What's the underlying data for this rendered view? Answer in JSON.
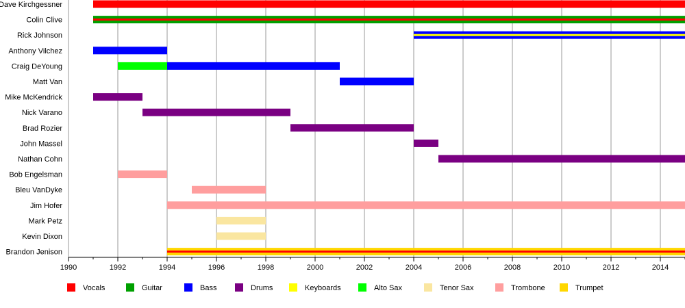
{
  "chart_data": {
    "type": "timeline",
    "title": "",
    "xlabel": "",
    "ylabel": "",
    "xlim": [
      1990,
      2015
    ],
    "grid": true,
    "legend_position": "bottom",
    "x_ticks": [
      "1990",
      "1992",
      "1994",
      "1996",
      "1998",
      "2000",
      "2002",
      "2004",
      "2006",
      "2008",
      "2010",
      "2012",
      "2014"
    ],
    "roles": [
      {
        "name": "Vocals",
        "color": "#ff0000"
      },
      {
        "name": "Guitar",
        "color": "#00a000"
      },
      {
        "name": "Bass",
        "color": "#0000ff"
      },
      {
        "name": "Drums",
        "color": "#7a0082"
      },
      {
        "name": "Keyboards",
        "color": "#ffff00"
      },
      {
        "name": "Alto Sax",
        "color": "#00ff00"
      },
      {
        "name": "Tenor Sax",
        "color": "#fae6a0"
      },
      {
        "name": "Trombone",
        "color": "#ff9e9e"
      },
      {
        "name": "Trumpet",
        "color": "#ffd700"
      }
    ],
    "members": [
      {
        "name": "Dave Kirchgessner",
        "spans": [
          {
            "start": 1991,
            "end": 2015,
            "role": "Vocals"
          }
        ]
      },
      {
        "name": "Colin Clive",
        "spans": [
          {
            "start": 1991,
            "end": 2015,
            "role": "Guitar",
            "secondary": "Vocals"
          }
        ]
      },
      {
        "name": "Rick Johnson",
        "spans": [
          {
            "start": 2004,
            "end": 2015,
            "role": "Bass",
            "secondary": "Keyboards"
          }
        ]
      },
      {
        "name": "Anthony Vilchez",
        "spans": [
          {
            "start": 1991,
            "end": 1994,
            "role": "Bass"
          }
        ]
      },
      {
        "name": "Craig DeYoung",
        "spans": [
          {
            "start": 1992,
            "end": 1994,
            "role": "Alto Sax"
          },
          {
            "start": 1994,
            "end": 2001,
            "role": "Bass"
          }
        ]
      },
      {
        "name": "Matt Van",
        "spans": [
          {
            "start": 2001,
            "end": 2004,
            "role": "Bass"
          }
        ]
      },
      {
        "name": "Mike McKendrick",
        "spans": [
          {
            "start": 1991,
            "end": 1993,
            "role": "Drums"
          }
        ]
      },
      {
        "name": "Nick Varano",
        "spans": [
          {
            "start": 1993,
            "end": 1999,
            "role": "Drums"
          }
        ]
      },
      {
        "name": "Brad Rozier",
        "spans": [
          {
            "start": 1999,
            "end": 2004,
            "role": "Drums"
          }
        ]
      },
      {
        "name": "John Massel",
        "spans": [
          {
            "start": 2004,
            "end": 2005,
            "role": "Drums"
          }
        ]
      },
      {
        "name": "Nathan Cohn",
        "spans": [
          {
            "start": 2005,
            "end": 2015,
            "role": "Drums"
          }
        ]
      },
      {
        "name": "Bob Engelsman",
        "spans": [
          {
            "start": 1992,
            "end": 1994,
            "role": "Trombone"
          }
        ]
      },
      {
        "name": "Bleu VanDyke",
        "spans": [
          {
            "start": 1995,
            "end": 1998,
            "role": "Trombone"
          }
        ]
      },
      {
        "name": "Jim Hofer",
        "spans": [
          {
            "start": 1994,
            "end": 2015,
            "role": "Trombone"
          }
        ]
      },
      {
        "name": "Mark Petz",
        "spans": [
          {
            "start": 1996,
            "end": 1998,
            "role": "Tenor Sax"
          }
        ]
      },
      {
        "name": "Kevin Dixon",
        "spans": [
          {
            "start": 1996,
            "end": 1998,
            "role": "Tenor Sax"
          }
        ]
      },
      {
        "name": "Brandon Jenison",
        "spans": [
          {
            "start": 1994,
            "end": 2015,
            "role": "Trumpet",
            "secondary": "Vocals"
          }
        ]
      }
    ]
  }
}
